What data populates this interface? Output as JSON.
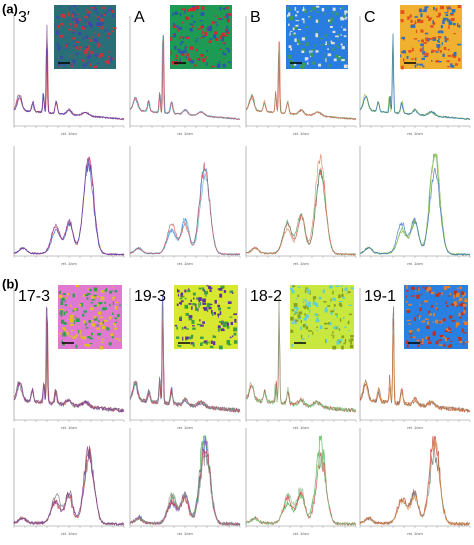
{
  "figure": {
    "sections": [
      {
        "label": "(a)",
        "panels": [
          {
            "label": "3′"
          },
          {
            "label": "A"
          },
          {
            "label": "B"
          },
          {
            "label": "C"
          }
        ]
      },
      {
        "label": "(b)",
        "panels": [
          {
            "label": "17-3"
          },
          {
            "label": "19-3"
          },
          {
            "label": "18-2"
          },
          {
            "label": "19-1"
          }
        ]
      }
    ],
    "axis_label": "rel. 1/cm"
  }
}
